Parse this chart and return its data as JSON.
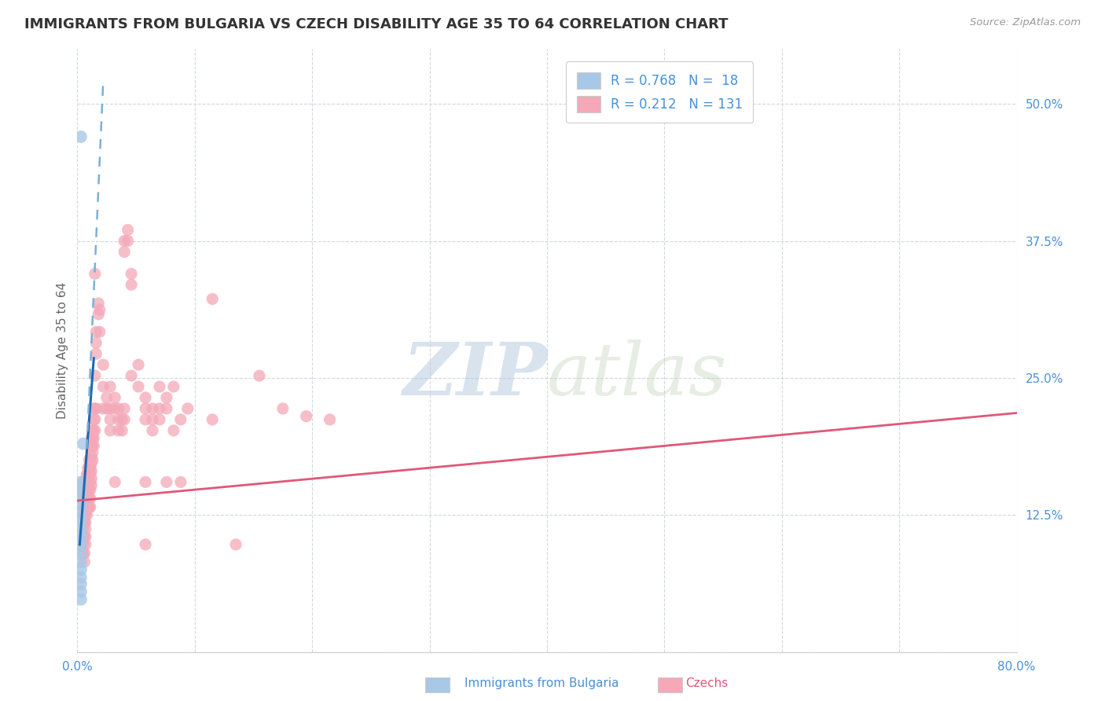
{
  "title": "IMMIGRANTS FROM BULGARIA VS CZECH DISABILITY AGE 35 TO 64 CORRELATION CHART",
  "source": "Source: ZipAtlas.com",
  "ylabel": "Disability Age 35 to 64",
  "xlim": [
    0.0,
    0.8
  ],
  "ylim": [
    0.0,
    0.55
  ],
  "xticks": [
    0.0,
    0.1,
    0.2,
    0.3,
    0.4,
    0.5,
    0.6,
    0.7,
    0.8
  ],
  "xticklabels": [
    "0.0%",
    "",
    "",
    "",
    "",
    "",
    "",
    "",
    "80.0%"
  ],
  "yticks": [
    0.0,
    0.125,
    0.25,
    0.375,
    0.5
  ],
  "yticklabels": [
    "",
    "12.5%",
    "25.0%",
    "37.5%",
    "50.0%"
  ],
  "bulgaria_color": "#a8c8e8",
  "czech_color": "#f4a8b8",
  "bulgaria_line_solid_color": "#1a6ab0",
  "bulgaria_line_dashed_color": "#7ab0d8",
  "czech_line_color": "#e05878",
  "watermark_color": "#c8d8ea",
  "background_color": "#ffffff",
  "grid_color": "#d0d8e0",
  "title_fontsize": 13,
  "axis_label_fontsize": 11,
  "tick_fontsize": 11,
  "bulgaria_scatter": [
    [
      0.003,
      0.47
    ],
    [
      0.005,
      0.19
    ],
    [
      0.003,
      0.155
    ],
    [
      0.003,
      0.148
    ],
    [
      0.003,
      0.14
    ],
    [
      0.003,
      0.135
    ],
    [
      0.003,
      0.128
    ],
    [
      0.003,
      0.12
    ],
    [
      0.003,
      0.112
    ],
    [
      0.003,
      0.105
    ],
    [
      0.003,
      0.098
    ],
    [
      0.003,
      0.09
    ],
    [
      0.003,
      0.082
    ],
    [
      0.003,
      0.075
    ],
    [
      0.003,
      0.068
    ],
    [
      0.003,
      0.062
    ],
    [
      0.003,
      0.055
    ],
    [
      0.003,
      0.048
    ]
  ],
  "czech_scatter": [
    [
      0.005,
      0.155
    ],
    [
      0.005,
      0.148
    ],
    [
      0.005,
      0.14
    ],
    [
      0.005,
      0.132
    ],
    [
      0.005,
      0.125
    ],
    [
      0.005,
      0.118
    ],
    [
      0.005,
      0.112
    ],
    [
      0.005,
      0.105
    ],
    [
      0.005,
      0.098
    ],
    [
      0.005,
      0.09
    ],
    [
      0.006,
      0.148
    ],
    [
      0.006,
      0.14
    ],
    [
      0.006,
      0.132
    ],
    [
      0.006,
      0.125
    ],
    [
      0.006,
      0.118
    ],
    [
      0.006,
      0.105
    ],
    [
      0.006,
      0.09
    ],
    [
      0.006,
      0.082
    ],
    [
      0.007,
      0.155
    ],
    [
      0.007,
      0.148
    ],
    [
      0.007,
      0.14
    ],
    [
      0.007,
      0.132
    ],
    [
      0.007,
      0.125
    ],
    [
      0.007,
      0.118
    ],
    [
      0.007,
      0.112
    ],
    [
      0.007,
      0.105
    ],
    [
      0.007,
      0.098
    ],
    [
      0.008,
      0.162
    ],
    [
      0.008,
      0.155
    ],
    [
      0.008,
      0.148
    ],
    [
      0.008,
      0.14
    ],
    [
      0.008,
      0.132
    ],
    [
      0.008,
      0.125
    ],
    [
      0.009,
      0.168
    ],
    [
      0.009,
      0.162
    ],
    [
      0.009,
      0.155
    ],
    [
      0.009,
      0.148
    ],
    [
      0.009,
      0.14
    ],
    [
      0.009,
      0.132
    ],
    [
      0.01,
      0.175
    ],
    [
      0.01,
      0.168
    ],
    [
      0.01,
      0.162
    ],
    [
      0.01,
      0.155
    ],
    [
      0.01,
      0.148
    ],
    [
      0.01,
      0.14
    ],
    [
      0.01,
      0.132
    ],
    [
      0.011,
      0.168
    ],
    [
      0.011,
      0.162
    ],
    [
      0.011,
      0.155
    ],
    [
      0.011,
      0.148
    ],
    [
      0.011,
      0.14
    ],
    [
      0.011,
      0.132
    ],
    [
      0.012,
      0.195
    ],
    [
      0.012,
      0.188
    ],
    [
      0.012,
      0.178
    ],
    [
      0.012,
      0.172
    ],
    [
      0.012,
      0.165
    ],
    [
      0.012,
      0.158
    ],
    [
      0.012,
      0.152
    ],
    [
      0.013,
      0.202
    ],
    [
      0.013,
      0.195
    ],
    [
      0.013,
      0.188
    ],
    [
      0.013,
      0.182
    ],
    [
      0.013,
      0.175
    ],
    [
      0.014,
      0.222
    ],
    [
      0.014,
      0.212
    ],
    [
      0.014,
      0.202
    ],
    [
      0.014,
      0.195
    ],
    [
      0.014,
      0.188
    ],
    [
      0.015,
      0.345
    ],
    [
      0.015,
      0.252
    ],
    [
      0.015,
      0.222
    ],
    [
      0.015,
      0.212
    ],
    [
      0.015,
      0.202
    ],
    [
      0.016,
      0.292
    ],
    [
      0.016,
      0.282
    ],
    [
      0.016,
      0.272
    ],
    [
      0.016,
      0.222
    ],
    [
      0.018,
      0.318
    ],
    [
      0.018,
      0.308
    ],
    [
      0.019,
      0.312
    ],
    [
      0.019,
      0.292
    ],
    [
      0.022,
      0.262
    ],
    [
      0.022,
      0.242
    ],
    [
      0.022,
      0.222
    ],
    [
      0.025,
      0.232
    ],
    [
      0.025,
      0.222
    ],
    [
      0.028,
      0.242
    ],
    [
      0.028,
      0.222
    ],
    [
      0.028,
      0.212
    ],
    [
      0.028,
      0.202
    ],
    [
      0.032,
      0.232
    ],
    [
      0.032,
      0.222
    ],
    [
      0.032,
      0.155
    ],
    [
      0.035,
      0.222
    ],
    [
      0.035,
      0.212
    ],
    [
      0.035,
      0.202
    ],
    [
      0.038,
      0.212
    ],
    [
      0.038,
      0.202
    ],
    [
      0.04,
      0.375
    ],
    [
      0.04,
      0.365
    ],
    [
      0.04,
      0.222
    ],
    [
      0.04,
      0.212
    ],
    [
      0.043,
      0.385
    ],
    [
      0.043,
      0.375
    ],
    [
      0.046,
      0.345
    ],
    [
      0.046,
      0.335
    ],
    [
      0.046,
      0.252
    ],
    [
      0.052,
      0.262
    ],
    [
      0.052,
      0.242
    ],
    [
      0.058,
      0.232
    ],
    [
      0.058,
      0.222
    ],
    [
      0.058,
      0.212
    ],
    [
      0.058,
      0.155
    ],
    [
      0.058,
      0.098
    ],
    [
      0.064,
      0.222
    ],
    [
      0.064,
      0.212
    ],
    [
      0.064,
      0.202
    ],
    [
      0.07,
      0.242
    ],
    [
      0.07,
      0.222
    ],
    [
      0.07,
      0.212
    ],
    [
      0.076,
      0.232
    ],
    [
      0.076,
      0.222
    ],
    [
      0.076,
      0.155
    ],
    [
      0.082,
      0.242
    ],
    [
      0.082,
      0.202
    ],
    [
      0.088,
      0.212
    ],
    [
      0.088,
      0.155
    ],
    [
      0.094,
      0.222
    ],
    [
      0.115,
      0.322
    ],
    [
      0.115,
      0.212
    ],
    [
      0.135,
      0.098
    ],
    [
      0.155,
      0.252
    ],
    [
      0.175,
      0.222
    ],
    [
      0.195,
      0.215
    ],
    [
      0.215,
      0.212
    ]
  ],
  "bulgaria_solid_line": [
    [
      0.002,
      0.098
    ],
    [
      0.014,
      0.268
    ]
  ],
  "bulgaria_dashed_line": [
    [
      0.008,
      0.185
    ],
    [
      0.022,
      0.52
    ]
  ],
  "czech_trendline": [
    [
      0.0,
      0.138
    ],
    [
      0.8,
      0.218
    ]
  ]
}
